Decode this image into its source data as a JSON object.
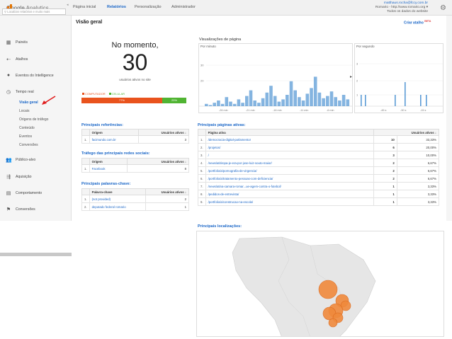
{
  "topbar": {
    "logo_brand": "Google",
    "logo_product": "Analytics",
    "nav": [
      "Página inicial",
      "Relatórios",
      "Personalização",
      "Administrador"
    ],
    "active_nav": "Relatórios",
    "account_email": "matthaus.rocha@fccy.com.br",
    "account_property": "Romario - http://www.romario.org",
    "account_view": "Todos os dados do website"
  },
  "sidebar": {
    "search_placeholder": "Localizar relatórios e muito mais",
    "items": [
      {
        "label": "Painéis",
        "icon": "grid-icon"
      },
      {
        "label": "Atalhos",
        "icon": "shortcut-arrow-icon"
      },
      {
        "label": "Eventos do Intelligence",
        "icon": "lightbulb-icon"
      },
      {
        "label": "Tempo real",
        "icon": "clock-icon"
      },
      {
        "label": "Público-alvo",
        "icon": "people-icon"
      },
      {
        "label": "Aquisição",
        "icon": "acquisition-icon"
      },
      {
        "label": "Comportamento",
        "icon": "behavior-icon"
      },
      {
        "label": "Conversões",
        "icon": "flag-icon"
      }
    ],
    "realtime_sub": [
      "Visão geral",
      "Locais",
      "Origens de tráfego",
      "Conteúdo",
      "Eventos",
      "Conversões"
    ],
    "selected_sub": "Visão geral"
  },
  "main": {
    "title": "Visão geral",
    "shortcut": "Criar atalho",
    "shortcut_badge": "BETA",
    "now_label": "No momento,",
    "active_users": "30",
    "active_users_label": "usuários ativos no site",
    "devices": [
      {
        "label": "COMPUTADOR",
        "pct": "77%",
        "value": 77,
        "color": "#e9531d"
      },
      {
        "label": "CELULAR",
        "pct": "23%",
        "value": 23,
        "color": "#50b432"
      }
    ],
    "pageviews_title": "Visualizações de página",
    "per_minute": "Por minuto",
    "per_second": "Por segundo",
    "minute_ticks": [
      "-26 min",
      "-21 min",
      "-16 min",
      "-11 min",
      "-6 min"
    ],
    "minute_y": [
      "30",
      "20"
    ],
    "second_ticks": [
      "-45 s",
      "-30 s",
      "-15 s"
    ],
    "second_y": [
      "3",
      "2",
      "1"
    ],
    "referrals": {
      "title": "Principais referências:",
      "headers": [
        "Origem",
        "Usuários ativos"
      ],
      "rows": [
        {
          "rank": "1.",
          "name": "facimundo.com.br",
          "value": "3"
        }
      ]
    },
    "social": {
      "title": "Tráfego das principais redes sociais:",
      "headers": [
        "Origem",
        "Usuários ativos"
      ],
      "rows": [
        {
          "rank": "1.",
          "name": "Facebook",
          "value": "8"
        }
      ]
    },
    "keywords": {
      "title": "Principais palavras-chave:",
      "headers": [
        "Palavra-chave",
        "Usuários ativos"
      ],
      "rows": [
        {
          "rank": "1.",
          "name": "(not provided)",
          "value": "2"
        },
        {
          "rank": "2.",
          "name": "deputado federal romario",
          "value": "1"
        }
      ]
    },
    "active_pages": {
      "title": "Principais páginas ativas:",
      "headers": [
        "Página ativa",
        "Usuários ativos"
      ],
      "rows": [
        {
          "rank": "1.",
          "name": "/democracia-digital-parlamentor",
          "value": "10",
          "pct": "33,33%"
        },
        {
          "rank": "2.",
          "name": "/projetos/",
          "value": "6",
          "pct": "20,00%"
        },
        {
          "rank": "3.",
          "name": "/",
          "value": "3",
          "pct": "10,00%"
        },
        {
          "rank": "4.",
          "name": "/news/atitiropa-je-era-por-jose-luiz-souto-maior/",
          "value": "2",
          "pct": "6,67%"
        },
        {
          "rank": "5.",
          "name": "/portfolio/a/pornografia-de-virgencia/",
          "value": "2",
          "pct": "6,67%"
        },
        {
          "rank": "6.",
          "name": "/portfolio/a/tratamento-pessoas-com-deficiencia/",
          "value": "2",
          "pct": "6,67%"
        },
        {
          "rank": "7.",
          "name": "/news/atina-camara-romar...ue-agem-contra-o-futebol/",
          "value": "1",
          "pct": "3,33%"
        },
        {
          "rank": "8.",
          "name": "/pedidos-de-entrevista/",
          "value": "1",
          "pct": "3,33%"
        },
        {
          "rank": "9.",
          "name": "/portfolio/a/construcao-na-escola/",
          "value": "1",
          "pct": "3,33%"
        }
      ]
    },
    "locations_title": "Principais localizações:"
  },
  "colors": {
    "link": "#1a66c7",
    "bar": "#5b9bd5",
    "desktop": "#e9531d",
    "mobile": "#50b432",
    "map_land": "#e6e6e6",
    "map_bubble": "#f08a3c"
  }
}
